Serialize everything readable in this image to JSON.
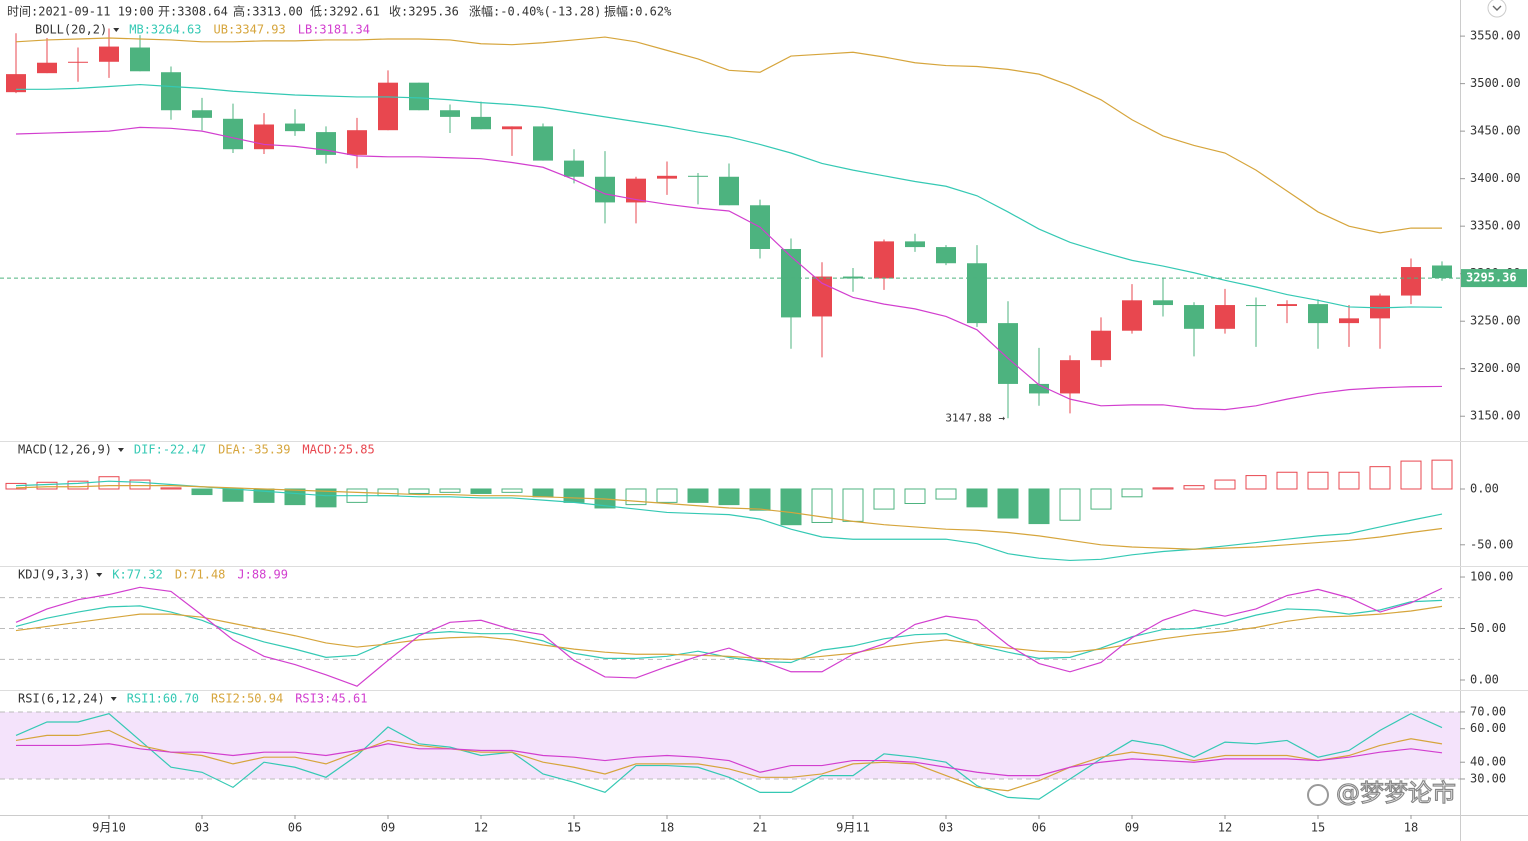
{
  "header": [
    "时间:2021-09-11 19:00",
    "开:3308.64",
    "高:3313.00",
    "低:3292.61",
    "收:3295.36",
    "涨幅:-0.40%(-13.28)",
    "振幅:0.62%"
  ],
  "watermark": "@梦梦论市",
  "chart_data": [
    {
      "type": "candlestick",
      "title": "BOLL(20,2)",
      "categories": [
        null,
        null,
        null,
        "9月10",
        null,
        null,
        "03",
        null,
        null,
        "06",
        null,
        null,
        "09",
        null,
        null,
        "12",
        null,
        null,
        "15",
        null,
        null,
        "18",
        null,
        null,
        "21",
        null,
        null,
        "9月11",
        null,
        null,
        "03",
        null,
        null,
        "06",
        null,
        null,
        "09",
        null,
        null,
        "12",
        null,
        null,
        "15",
        null,
        null,
        "18",
        null
      ],
      "open": [
        3491,
        3511,
        3522,
        3523,
        3538,
        3512,
        3472,
        3463,
        3431,
        3458,
        3449,
        3425,
        3451,
        3501,
        3472,
        3465,
        3452,
        3455,
        3419,
        3402,
        3375,
        3400,
        3403,
        3402,
        3372,
        3326,
        3255,
        3297,
        3295,
        3334,
        3328,
        3311,
        3248,
        3184,
        3174,
        3209,
        3240,
        3272,
        3267,
        3242,
        3267,
        3266,
        3268,
        3248,
        3253,
        3277,
        3308.64
      ],
      "high": [
        3553,
        3548,
        3538,
        3558,
        3551,
        3518,
        3485,
        3479,
        3469,
        3473,
        3455,
        3464,
        3514,
        3501,
        3478,
        3481,
        3455,
        3458,
        3431,
        3429,
        3402,
        3418,
        3406,
        3416,
        3378,
        3337,
        3312,
        3306,
        3336,
        3342,
        3330,
        3330,
        3271,
        3222,
        3214,
        3254,
        3289,
        3296,
        3270,
        3284,
        3275,
        3272,
        3273,
        3267,
        3279,
        3316,
        3313
      ],
      "low": [
        3490,
        3511,
        3502,
        3506,
        3513,
        3462,
        3451,
        3427,
        3426,
        3445,
        3416,
        3411,
        3451,
        3472,
        3448,
        3452,
        3424,
        3419,
        3395,
        3353,
        3353,
        3383,
        3373,
        3372,
        3316,
        3221,
        3212,
        3281,
        3283,
        3323,
        3309,
        3244,
        3147.88,
        3161,
        3153,
        3202,
        3237,
        3255,
        3213,
        3237,
        3223,
        3248,
        3221,
        3223,
        3221,
        3268,
        3292.61
      ],
      "close": [
        3510,
        3522,
        3523,
        3539,
        3513,
        3472,
        3464,
        3431,
        3457,
        3450,
        3425,
        3451,
        3501,
        3472,
        3465,
        3452,
        3455,
        3419,
        3402,
        3375,
        3400,
        3403,
        3402,
        3372,
        3326,
        3254,
        3297,
        3295,
        3334,
        3328,
        3311,
        3248,
        3184,
        3174,
        3209,
        3240,
        3272,
        3267,
        3242,
        3267,
        3266,
        3268,
        3248,
        3253,
        3277,
        3307,
        3295.36
      ],
      "up_color": "#e8474f",
      "down_color": "#4db37f",
      "series": [
        {
          "name": "MB:3264.63",
          "color": "#35c9b4",
          "values": [
            3494,
            3494,
            3495,
            3497,
            3499,
            3497,
            3495,
            3492,
            3490,
            3488,
            3487,
            3486,
            3486,
            3485,
            3483,
            3480,
            3478,
            3475,
            3470,
            3465,
            3460,
            3455,
            3449,
            3444,
            3436,
            3427,
            3416,
            3409,
            3403,
            3397,
            3392,
            3382,
            3365,
            3347,
            3333,
            3323,
            3314,
            3308,
            3301,
            3293,
            3286,
            3278,
            3272,
            3265,
            3264,
            3265,
            3264.63
          ]
        },
        {
          "name": "UB:3347.93",
          "color": "#d6a53c",
          "values": [
            3544,
            3546,
            3547,
            3548,
            3547,
            3546,
            3544,
            3544,
            3545,
            3545,
            3546,
            3546,
            3547,
            3547,
            3546,
            3542,
            3541,
            3543,
            3546,
            3549,
            3544,
            3535,
            3526,
            3514,
            3512,
            3529,
            3531,
            3533,
            3528,
            3522,
            3519,
            3518,
            3515,
            3510,
            3498,
            3483,
            3462,
            3445,
            3435,
            3427,
            3409,
            3387,
            3365,
            3350,
            3343,
            3348,
            3347.93
          ]
        },
        {
          "name": "LB:3181.34",
          "color": "#d23fcf",
          "values": [
            3447,
            3448,
            3449,
            3450,
            3454,
            3453,
            3450,
            3443,
            3436,
            3434,
            3430,
            3424,
            3423,
            3423,
            3422,
            3421,
            3417,
            3412,
            3399,
            3384,
            3378,
            3373,
            3369,
            3366,
            3349,
            3318,
            3290,
            3275,
            3268,
            3263,
            3255,
            3241,
            3211,
            3183,
            3168,
            3161,
            3162,
            3162,
            3158,
            3157,
            3161,
            3168,
            3174,
            3178,
            3180,
            3181,
            3181.34
          ]
        }
      ],
      "annotation": "3147.88 →",
      "ylim": [
        3125,
        3588
      ],
      "yticks": [
        {
          "value": 3150,
          "label": "3150.00"
        },
        {
          "value": 3200,
          "label": "3200.00"
        },
        {
          "value": 3250,
          "label": "3250.00"
        },
        {
          "value": 3300,
          "label": "3300.00"
        },
        {
          "value": 3350,
          "label": "3350.00"
        },
        {
          "value": 3400,
          "label": "3400.00"
        },
        {
          "value": 3450,
          "label": "3450.00"
        },
        {
          "value": 3500,
          "label": "3500.00"
        },
        {
          "value": 3550,
          "label": "3550.00"
        }
      ]
    },
    {
      "type": "macd",
      "title": "MACD(12,26,9)",
      "series": [
        {
          "name": "DIF:-22.47",
          "color": "#35c9b4",
          "values": [
            3,
            4,
            5,
            7,
            6,
            4,
            2,
            0,
            -2,
            -4,
            -6,
            -6,
            -6,
            -7,
            -7,
            -8,
            -8,
            -10,
            -12,
            -15,
            -18,
            -21,
            -22,
            -23,
            -27,
            -36,
            -43,
            -45,
            -45,
            -45,
            -45,
            -49,
            -58,
            -62,
            -64,
            -63,
            -59,
            -56,
            -54,
            -51,
            -48,
            -45,
            -42,
            -40,
            -34,
            -28,
            -22.47
          ]
        },
        {
          "name": "DEA:-35.39",
          "color": "#d6a53c",
          "values": [
            1,
            2,
            2,
            3,
            3,
            3,
            2,
            1,
            0,
            -1,
            -2,
            -3,
            -4,
            -5,
            -5,
            -6,
            -6,
            -7,
            -8,
            -9,
            -11,
            -13,
            -15,
            -17,
            -18,
            -21,
            -25,
            -29,
            -32,
            -34,
            -36,
            -37,
            -39,
            -42,
            -46,
            -50,
            -52,
            -53,
            -54,
            -53,
            -52,
            -50,
            -48,
            -46,
            -43,
            -39,
            -35.39
          ]
        }
      ],
      "histogram": {
        "name": "MACD:25.85",
        "up_color": "#e8474f",
        "down_color": "#4db37f",
        "values": [
          5,
          6,
          7,
          11,
          8,
          1,
          -5,
          -11,
          -12,
          -14,
          -16,
          -12,
          -6,
          -4,
          -3,
          -4,
          -3,
          -7,
          -12,
          -17,
          -14,
          -12,
          -12,
          -14,
          -19,
          -32,
          -30,
          -29,
          -18,
          -13,
          -9,
          -16,
          -26,
          -31,
          -28,
          -18,
          -7,
          1,
          3,
          8,
          12,
          15,
          15,
          15,
          20,
          25,
          25.85
        ]
      },
      "ylim": [
        -69,
        43
      ],
      "yticks": [
        {
          "value": 0,
          "label": "0.00"
        },
        {
          "value": -50,
          "label": "-50.00"
        }
      ]
    },
    {
      "type": "line",
      "title": "KDJ(9,3,3)",
      "series": [
        {
          "name": "K:77.32",
          "color": "#35c9b4",
          "values": [
            52,
            60,
            66,
            71,
            72,
            66,
            58,
            46,
            37,
            30,
            22,
            24,
            37,
            45,
            47,
            45,
            45,
            38,
            26,
            21,
            21,
            23,
            28,
            22,
            18,
            17,
            29,
            33,
            40,
            44,
            45,
            34,
            27,
            21,
            22,
            31,
            42,
            49,
            50,
            55,
            63,
            69,
            68,
            64,
            68,
            76,
            77.32
          ]
        },
        {
          "name": "D:71.48",
          "color": "#d6a53c",
          "values": [
            48,
            52,
            56,
            60,
            64,
            64,
            61,
            55,
            49,
            43,
            36,
            32,
            35,
            39,
            41,
            42,
            39,
            34,
            30,
            27,
            25,
            25,
            24,
            23,
            21,
            20,
            23,
            26,
            32,
            36,
            39,
            35,
            31,
            28,
            27,
            30,
            35,
            40,
            44,
            47,
            51,
            57,
            61,
            62,
            64,
            67,
            71.48
          ]
        },
        {
          "name": "J:88.99",
          "color": "#d23fcf",
          "values": [
            56,
            69,
            78,
            83,
            90,
            86,
            63,
            39,
            23,
            15,
            5,
            -6,
            19,
            43,
            56,
            58,
            49,
            44,
            19,
            3,
            2,
            13,
            23,
            31,
            19,
            8,
            8,
            25,
            35,
            54,
            62,
            58,
            34,
            16,
            8,
            17,
            41,
            58,
            68,
            62,
            69,
            82,
            88,
            80,
            66,
            75,
            88.99
          ]
        }
      ],
      "ref_lines": [
        80,
        50,
        20
      ],
      "ylim": [
        -9.7,
        110.7
      ],
      "yticks": [
        {
          "value": 100,
          "label": "100.00"
        },
        {
          "value": 50,
          "label": "50.00"
        },
        {
          "value": 0,
          "label": "0.00"
        }
      ]
    },
    {
      "type": "line",
      "title": "RSI(6,12,24)",
      "series": [
        {
          "name": "RSI1:60.70",
          "color": "#35c9b4",
          "values": [
            56,
            64,
            64,
            69,
            53,
            37,
            34,
            25,
            40,
            37,
            31,
            44,
            61,
            51,
            49,
            44,
            46,
            33,
            28,
            22,
            38,
            38,
            37,
            31,
            22,
            22,
            32,
            32,
            45,
            43,
            40,
            26,
            19,
            18,
            30,
            42,
            53,
            50,
            43,
            52,
            51,
            53,
            43,
            47,
            59,
            69,
            60.7
          ]
        },
        {
          "name": "RSI2:50.94",
          "color": "#d6a53c",
          "values": [
            53,
            56,
            56,
            59,
            50,
            46,
            44,
            39,
            43,
            43,
            39,
            46,
            53,
            50,
            48,
            46,
            46,
            40,
            37,
            33,
            39,
            39,
            39,
            36,
            31,
            31,
            33,
            39,
            40,
            39,
            32,
            25,
            23,
            29,
            37,
            43,
            46,
            44,
            41,
            44,
            44,
            44,
            41,
            44,
            50,
            54,
            50.94
          ]
        },
        {
          "name": "RSI3:45.61",
          "color": "#d23fcf",
          "values": [
            50,
            50,
            50,
            51,
            48,
            46,
            46,
            44,
            46,
            46,
            44,
            47,
            51,
            48,
            48,
            47,
            47,
            44,
            43,
            41,
            43,
            44,
            43,
            41,
            34,
            38,
            38,
            41,
            41,
            40,
            37,
            34,
            32,
            32,
            37,
            40,
            42,
            41,
            40,
            42,
            42,
            42,
            41,
            43,
            46,
            48,
            45.61
          ]
        }
      ],
      "band": [
        30,
        70
      ],
      "band_color": "#f4e3fb",
      "ylim": [
        8.5,
        83.1
      ],
      "yticks": [
        {
          "value": 70,
          "label": "70.00"
        },
        {
          "value": 60,
          "label": "60.00"
        },
        {
          "value": 40,
          "label": "40.00"
        },
        {
          "value": 30,
          "label": "30.00"
        }
      ]
    }
  ]
}
